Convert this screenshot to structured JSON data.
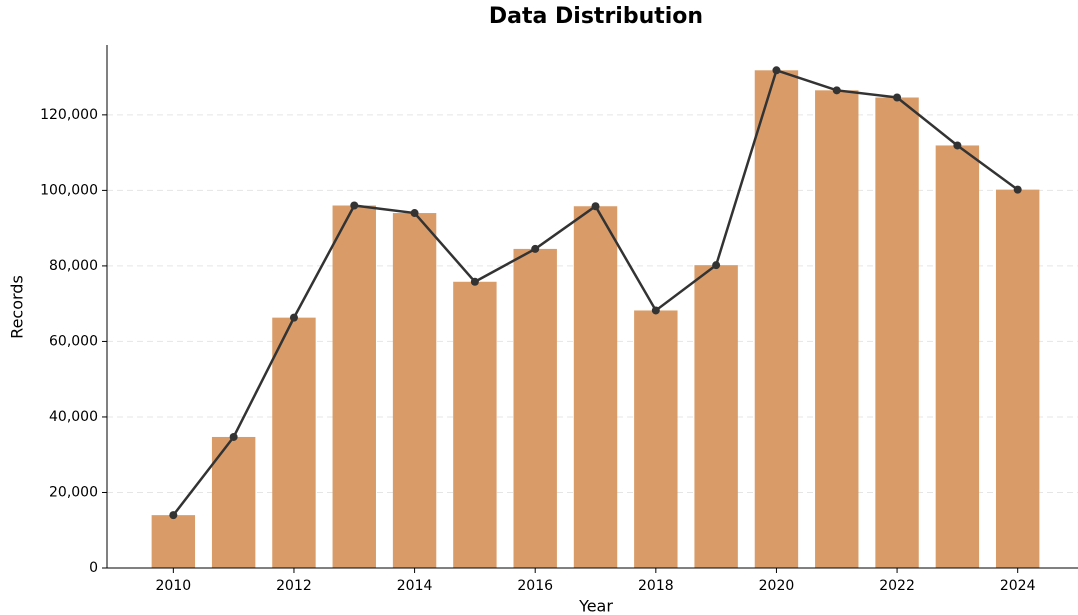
{
  "chart_data": {
    "type": "bar",
    "title": "Data Distribution",
    "xlabel": "Year",
    "ylabel": "Records",
    "x": [
      2010,
      2011,
      2012,
      2013,
      2014,
      2015,
      2016,
      2017,
      2018,
      2019,
      2020,
      2021,
      2022,
      2023,
      2024
    ],
    "values": [
      14000,
      34700,
      66300,
      96000,
      94000,
      75800,
      84500,
      95800,
      68200,
      80200,
      131800,
      126500,
      124600,
      111900,
      100200
    ],
    "color": "#d99c69",
    "line_color": "#333333",
    "xlim": [
      2008.9,
      2025
    ],
    "xticks": [
      2010,
      2012,
      2014,
      2016,
      2018,
      2020,
      2022,
      2024
    ],
    "ylim": [
      0,
      138500
    ],
    "yticks": [
      0,
      {
        "value": 20000,
        "label": "20,000"
      },
      {
        "value": 40000,
        "label": "40,000"
      },
      {
        "value": 60000,
        "label": "60,000"
      },
      {
        "value": 80000,
        "label": "80,000"
      },
      {
        "value": 100000,
        "label": "100,000"
      },
      {
        "value": 120000,
        "label": "120,000"
      }
    ],
    "grid": true
  }
}
